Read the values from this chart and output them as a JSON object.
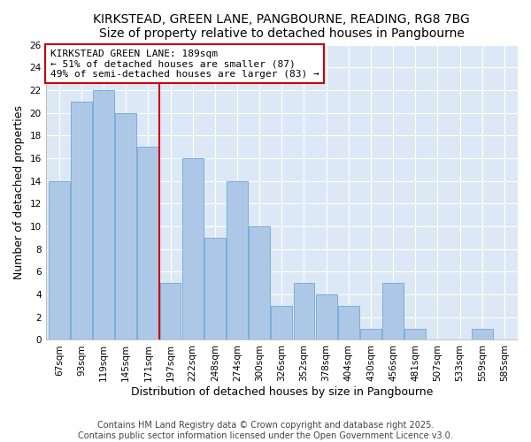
{
  "title": "KIRKSTEAD, GREEN LANE, PANGBOURNE, READING, RG8 7BG",
  "subtitle": "Size of property relative to detached houses in Pangbourne",
  "xlabel": "Distribution of detached houses by size in Pangbourne",
  "ylabel": "Number of detached properties",
  "categories": [
    "67sqm",
    "93sqm",
    "119sqm",
    "145sqm",
    "171sqm",
    "197sqm",
    "222sqm",
    "248sqm",
    "274sqm",
    "300sqm",
    "326sqm",
    "352sqm",
    "378sqm",
    "404sqm",
    "430sqm",
    "456sqm",
    "481sqm",
    "507sqm",
    "533sqm",
    "559sqm",
    "585sqm"
  ],
  "values": [
    14,
    21,
    22,
    20,
    17,
    5,
    16,
    9,
    14,
    10,
    3,
    5,
    4,
    3,
    1,
    5,
    1,
    0,
    0,
    1,
    0
  ],
  "bar_color": "#adc8e6",
  "bar_edge_color": "#7aadda",
  "vline_color": "#cc0000",
  "ylim": [
    0,
    26
  ],
  "yticks": [
    0,
    2,
    4,
    6,
    8,
    10,
    12,
    14,
    16,
    18,
    20,
    22,
    24,
    26
  ],
  "annotation_title": "KIRKSTEAD GREEN LANE: 189sqm",
  "annotation_line1": "← 51% of detached houses are smaller (87)",
  "annotation_line2": "49% of semi-detached houses are larger (83) →",
  "footnote1": "Contains HM Land Registry data © Crown copyright and database right 2025.",
  "footnote2": "Contains public sector information licensed under the Open Government Licence v3.0.",
  "bg_color": "#ffffff",
  "plot_bg_color": "#dce8f5",
  "grid_color": "#ffffff",
  "title_fontsize": 10,
  "subtitle_fontsize": 9,
  "axis_label_fontsize": 9,
  "tick_fontsize": 7.5,
  "annotation_fontsize": 8,
  "footnote_fontsize": 7
}
